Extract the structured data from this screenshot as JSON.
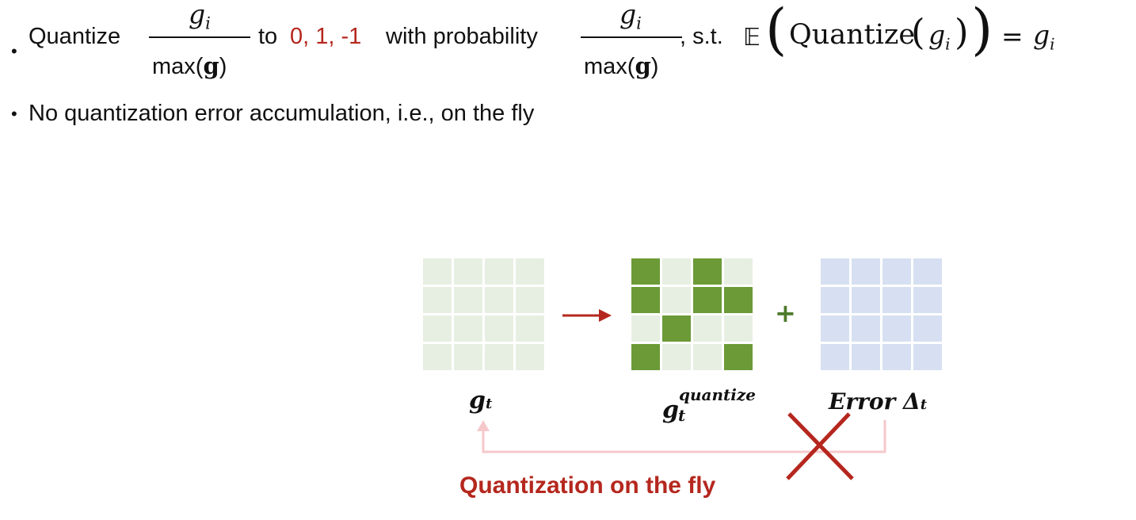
{
  "colors": {
    "text": "#111111",
    "accent_red": "#b5271e",
    "grid_light_green": "#e7efe3",
    "grid_dark_green": "#6b9a37",
    "grid_blue": "#d6e0f2",
    "feedback_pink": "#f6c8cc",
    "plus_green": "#4d7a2a"
  },
  "bullets": [
    {
      "quantize_word": "Quantize",
      "frac_num": "g",
      "frac_num_sub": "i",
      "frac_den_prefix": "max(",
      "frac_den_bold": "g",
      "frac_den_suffix": ")",
      "to_word": "to",
      "values_text": "0, 1, -1",
      "with_prob_text": "with probability",
      "st_text": ", s.t.",
      "expect_symbol": "𝔼",
      "quantize_fn": "Quantize",
      "g_symbol": "g",
      "sub_i": "i",
      "equals": "=",
      "rhs_g": "g",
      "rhs_sub": "i"
    },
    {
      "text": "No quantization error accumulation, i.e., on the fly"
    }
  ],
  "bullet_glyph": "•",
  "diagram": {
    "grid_quantize_pattern": [
      [
        1,
        0,
        1,
        0
      ],
      [
        1,
        0,
        1,
        1
      ],
      [
        0,
        1,
        0,
        0
      ],
      [
        1,
        0,
        0,
        1
      ]
    ],
    "plus_sign": "+",
    "label_gt": "g",
    "label_gt_sub": "t",
    "label_gq": "g",
    "label_gq_sub": "t",
    "label_gq_sup": "quantize",
    "label_error": "Error Δ",
    "label_error_sub": "t",
    "caption": "Quantization on the fly"
  }
}
